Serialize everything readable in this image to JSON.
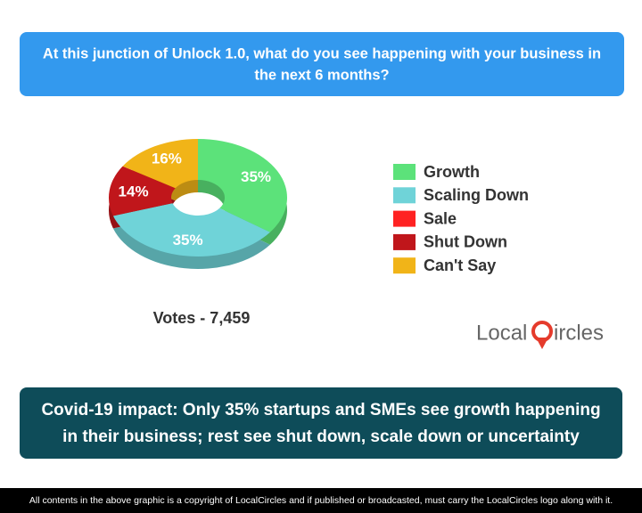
{
  "chart_data": {
    "type": "donut",
    "title_lines": [
      "At this junction of Unlock 1.0, what do you see happening with your business in",
      "the next 6 months?"
    ],
    "categories": [
      "Growth",
      "Scaling Down",
      "Sale",
      "Shut Down",
      "Can't Say"
    ],
    "values": [
      35,
      35,
      0,
      14,
      16
    ],
    "value_labels": [
      "35%",
      "35%",
      null,
      "14%",
      "16%"
    ],
    "colors": [
      "#5ce27a",
      "#6fd3d8",
      "#ff2222",
      "#c0161b",
      "#f1b418"
    ],
    "votes": "Votes - 7,459",
    "legend": "right"
  },
  "logo": {
    "left": "Local",
    "right": "ircles"
  },
  "headline_lines": [
    "Covid-19 impact: Only 35% startups and SMEs see growth happening",
    "in their business; rest see shut down, scale down or uncertainty"
  ],
  "footer": "All contents in the above graphic is a copyright of LocalCircles and if published or broadcasted, must carry the LocalCircles logo along with it."
}
